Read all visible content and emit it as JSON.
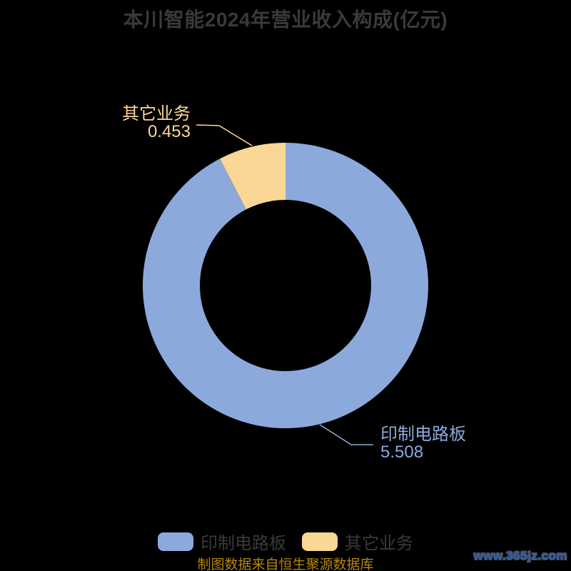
{
  "title": "本川智能2024年营业收入构成(亿元)",
  "source_note": "制图数据来自恒生聚源数据库",
  "watermark": "www.365jz.com",
  "colors": {
    "background": "#000000",
    "title_text": "#3A3A3A",
    "legend_text": "#3A3A3A",
    "source_note_text": "#B8860B",
    "watermark_text": "#2B5FB2",
    "series_pcb": "#8CA9DB",
    "series_other": "#FBD795"
  },
  "chart_data": {
    "type": "pie",
    "donut": true,
    "title": "本川智能2024年营业收入构成(亿元)",
    "unit": "亿元",
    "start_angle": "top",
    "direction": "clockwise",
    "inner_radius_ratio": 0.6,
    "legend_position": "bottom",
    "series": [
      {
        "name": "印制电路板",
        "value": 5.508,
        "display_value": "5.508",
        "color": "#8CA9DB"
      },
      {
        "name": "其它业务",
        "value": 0.453,
        "display_value": "0.453",
        "color": "#FBD795"
      }
    ]
  },
  "legend": {
    "items": [
      {
        "label": "印制电路板",
        "color": "#8CA9DB"
      },
      {
        "label": "其它业务",
        "color": "#FBD795"
      }
    ]
  }
}
